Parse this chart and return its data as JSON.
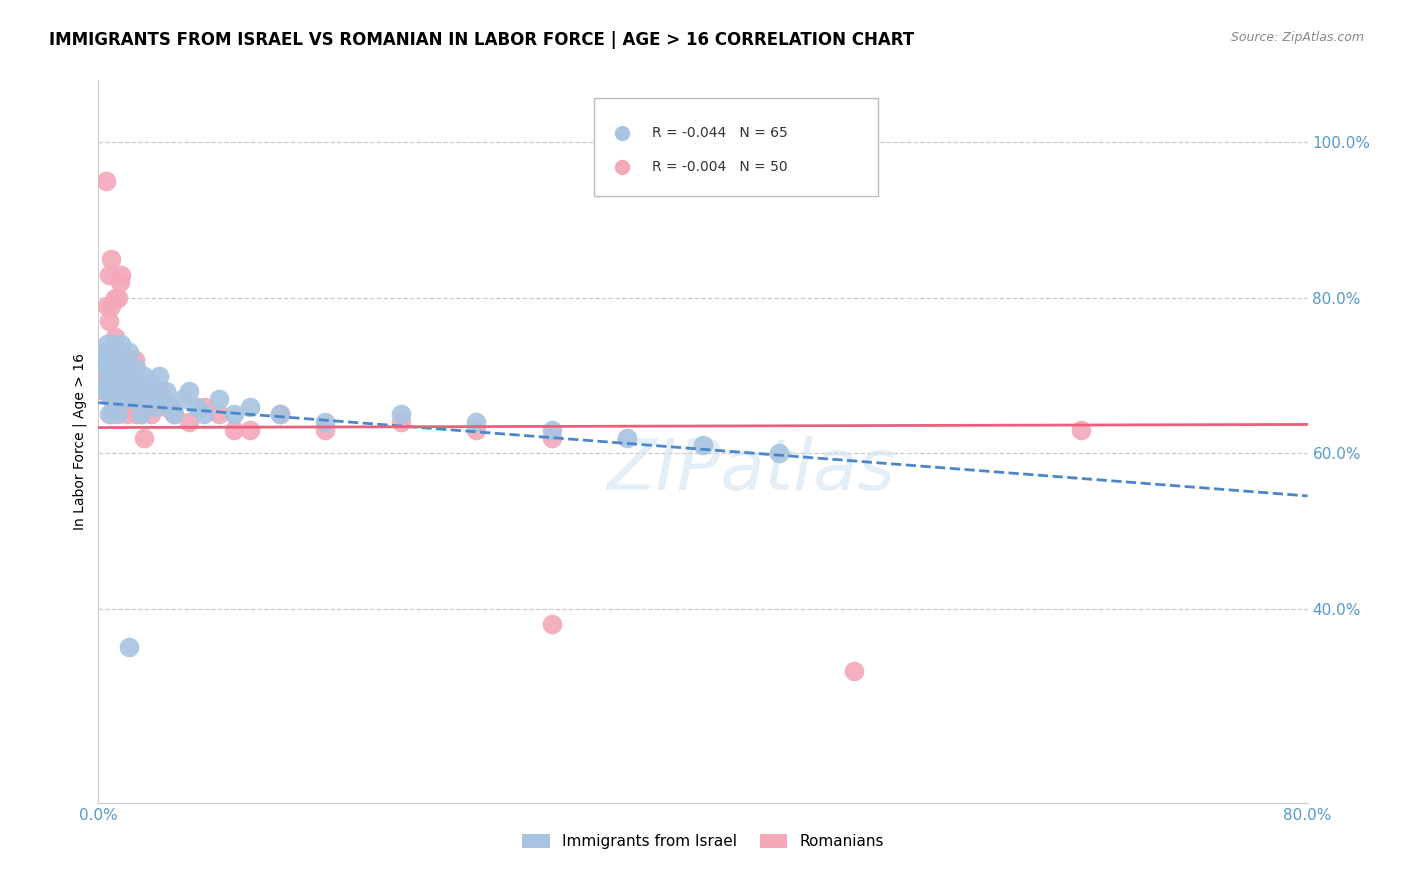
{
  "title": "IMMIGRANTS FROM ISRAEL VS ROMANIAN IN LABOR FORCE | AGE > 16 CORRELATION CHART",
  "source": "Source: ZipAtlas.com",
  "ylabel": "In Labor Force | Age > 16",
  "xlim": [
    0.0,
    0.8
  ],
  "ylim": [
    0.15,
    1.08
  ],
  "ytick_vals": [
    0.4,
    0.6,
    0.8,
    1.0
  ],
  "ytick_lbls": [
    "40.0%",
    "60.0%",
    "80.0%",
    "100.0%"
  ],
  "xtick_vals": [
    0.0,
    0.8
  ],
  "xtick_lbls": [
    "0.0%",
    "80.0%"
  ],
  "grid_color": "#cccccc",
  "background_color": "#ffffff",
  "israel_color": "#a8c4e0",
  "romanian_color": "#f4a8b8",
  "israel_line_color": "#4a86c8",
  "romanian_line_color": "#e8607a",
  "tick_color": "#5599cc",
  "legend_R_israel": "R = -0.044",
  "legend_N_israel": "N = 65",
  "legend_R_romanian": "R = -0.004",
  "legend_N_romanian": "N = 50",
  "legend_label_israel": "Immigrants from Israel",
  "legend_label_romanian": "Romanians",
  "watermark": "ZIPatlas",
  "israel_x": [
    0.003,
    0.004,
    0.005,
    0.005,
    0.006,
    0.006,
    0.007,
    0.007,
    0.007,
    0.008,
    0.008,
    0.009,
    0.009,
    0.01,
    0.01,
    0.01,
    0.011,
    0.011,
    0.012,
    0.012,
    0.013,
    0.013,
    0.014,
    0.015,
    0.015,
    0.016,
    0.016,
    0.017,
    0.018,
    0.018,
    0.019,
    0.02,
    0.021,
    0.022,
    0.023,
    0.025,
    0.026,
    0.027,
    0.028,
    0.03,
    0.032,
    0.034,
    0.036,
    0.038,
    0.04,
    0.042,
    0.045,
    0.048,
    0.05,
    0.055,
    0.06,
    0.065,
    0.07,
    0.08,
    0.09,
    0.1,
    0.12,
    0.15,
    0.2,
    0.25,
    0.3,
    0.35,
    0.4,
    0.45,
    0.02
  ],
  "israel_y": [
    0.72,
    0.69,
    0.73,
    0.68,
    0.74,
    0.71,
    0.72,
    0.68,
    0.65,
    0.7,
    0.67,
    0.73,
    0.69,
    0.74,
    0.71,
    0.68,
    0.72,
    0.69,
    0.73,
    0.7,
    0.68,
    0.65,
    0.71,
    0.74,
    0.7,
    0.68,
    0.72,
    0.69,
    0.67,
    0.71,
    0.68,
    0.73,
    0.7,
    0.68,
    0.67,
    0.71,
    0.69,
    0.68,
    0.65,
    0.7,
    0.67,
    0.69,
    0.68,
    0.66,
    0.7,
    0.67,
    0.68,
    0.66,
    0.65,
    0.67,
    0.68,
    0.66,
    0.65,
    0.67,
    0.65,
    0.66,
    0.65,
    0.64,
    0.65,
    0.64,
    0.63,
    0.62,
    0.61,
    0.6,
    0.35
  ],
  "romanian_x": [
    0.003,
    0.004,
    0.005,
    0.006,
    0.007,
    0.007,
    0.008,
    0.008,
    0.009,
    0.01,
    0.01,
    0.011,
    0.011,
    0.012,
    0.013,
    0.014,
    0.015,
    0.016,
    0.017,
    0.018,
    0.019,
    0.02,
    0.022,
    0.024,
    0.026,
    0.028,
    0.03,
    0.035,
    0.04,
    0.045,
    0.05,
    0.06,
    0.07,
    0.08,
    0.09,
    0.1,
    0.12,
    0.15,
    0.2,
    0.25,
    0.3,
    0.005,
    0.01,
    0.015,
    0.02,
    0.025,
    0.03,
    0.5,
    0.3,
    0.65
  ],
  "romanian_y": [
    0.7,
    0.68,
    0.95,
    0.79,
    0.83,
    0.77,
    0.85,
    0.79,
    0.65,
    0.72,
    0.68,
    0.8,
    0.75,
    0.71,
    0.8,
    0.82,
    0.83,
    0.68,
    0.72,
    0.68,
    0.65,
    0.69,
    0.66,
    0.72,
    0.68,
    0.65,
    0.67,
    0.65,
    0.68,
    0.66,
    0.65,
    0.64,
    0.66,
    0.65,
    0.63,
    0.63,
    0.65,
    0.63,
    0.64,
    0.63,
    0.62,
    0.73,
    0.68,
    0.7,
    0.67,
    0.65,
    0.62,
    0.32,
    0.38,
    0.63
  ],
  "israel_trend_x": [
    0.0,
    0.8
  ],
  "israel_trend_y": [
    0.665,
    0.545
  ],
  "romanian_trend_x": [
    0.0,
    0.8
  ],
  "romanian_trend_y": [
    0.633,
    0.637
  ]
}
